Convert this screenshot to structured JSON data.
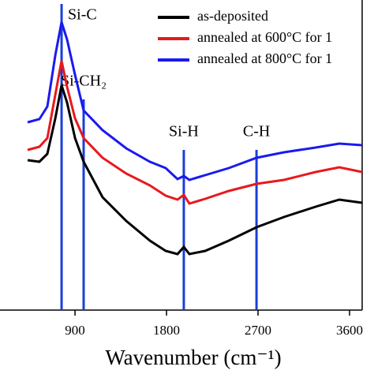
{
  "chart_data": {
    "type": "line",
    "x_label": "Wavenumber (cm⁻¹)",
    "x": [
      434,
      550,
      628,
      706,
      768,
      822,
      900,
      985,
      1171,
      1404,
      1637,
      1792,
      1908,
      1970,
      2025,
      2180,
      2413,
      2685,
      2956,
      3266,
      3499,
      3724
    ],
    "series": [
      {
        "name": "as-deposited",
        "color": "#000000",
        "values": [
          190,
          188,
          198,
          243,
          285,
          263,
          218,
          188,
          143,
          113,
          88,
          75,
          71,
          80,
          71,
          75,
          88,
          105,
          118,
          131,
          140,
          136
        ]
      },
      {
        "name": "annealed at 600°C for 1",
        "color": "#e8191c",
        "values": [
          203,
          207,
          218,
          273,
          316,
          283,
          243,
          218,
          193,
          173,
          158,
          145,
          140,
          146,
          135,
          141,
          151,
          160,
          165,
          175,
          181,
          175
        ]
      },
      {
        "name": "annealed at 800°C for 1",
        "color": "#1a1aef",
        "values": [
          238,
          242,
          258,
          323,
          365,
          343,
          298,
          253,
          228,
          205,
          188,
          180,
          166,
          170,
          165,
          171,
          180,
          193,
          200,
          206,
          211,
          209
        ]
      }
    ],
    "reference_lines": [
      {
        "x": 768,
        "label": "Si-C"
      },
      {
        "x": 985,
        "label": "Si-CH₂"
      },
      {
        "x": 1970,
        "label": "Si-H"
      },
      {
        "x": 2685,
        "label": "C-H"
      }
    ],
    "reference_color": "#1a3fd6",
    "xlim": [
      434,
      3724
    ],
    "ylim": [
      0,
      393
    ],
    "xticks": [
      900,
      1800,
      2700,
      3600
    ],
    "legend": "top-right"
  }
}
